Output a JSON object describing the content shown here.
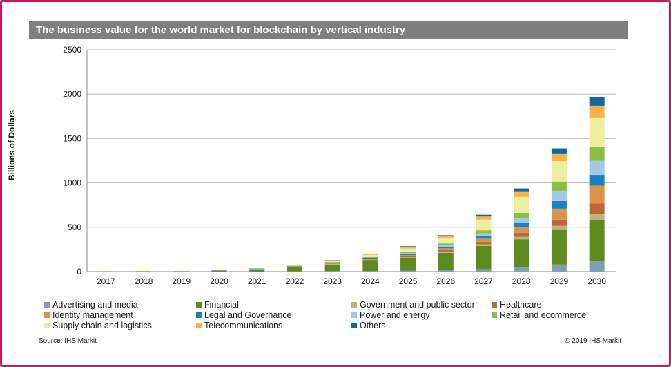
{
  "chart_data": {
    "type": "bar",
    "stacked": true,
    "title": "The business value for the world market for blockchain by vertical industry",
    "ylabel": "Billions of Dollars",
    "xlabel": "",
    "ylim": [
      0,
      2500
    ],
    "yticks": [
      "0",
      "500",
      "1000",
      "1500",
      "2000",
      "2500"
    ],
    "grid": true,
    "legend_position": "bottom",
    "categories": [
      "2017",
      "2018",
      "2019",
      "2020",
      "2021",
      "2022",
      "2023",
      "2024",
      "2025",
      "2026",
      "2027",
      "2028",
      "2029",
      "2030"
    ],
    "series": [
      {
        "name": "Advertising and media",
        "color": "#7f9fb2",
        "values": [
          0,
          0,
          0,
          1,
          2,
          3,
          5,
          8,
          12,
          17,
          28,
          45,
          80,
          120
        ]
      },
      {
        "name": "Financial",
        "color": "#5e8a1e",
        "values": [
          3,
          5,
          7,
          12,
          22,
          50,
          75,
          110,
          140,
          195,
          260,
          320,
          390,
          460
        ]
      },
      {
        "name": "Government and public sector",
        "color": "#b7b981",
        "values": [
          0,
          0,
          0,
          1,
          1,
          2,
          4,
          6,
          9,
          12,
          20,
          28,
          45,
          70
        ]
      },
      {
        "name": "Healthcare",
        "color": "#c0673a",
        "values": [
          0,
          0,
          0,
          1,
          1,
          2,
          5,
          8,
          12,
          18,
          28,
          45,
          70,
          120
        ]
      },
      {
        "name": "Identity management",
        "color": "#d9944a",
        "values": [
          0,
          0,
          0,
          1,
          1,
          2,
          5,
          8,
          12,
          20,
          35,
          60,
          125,
          200
        ]
      },
      {
        "name": "Legal and Governance",
        "color": "#1a82c4",
        "values": [
          0,
          0,
          0,
          1,
          1,
          2,
          5,
          8,
          12,
          18,
          30,
          50,
          85,
          120
        ]
      },
      {
        "name": "Power and energy",
        "color": "#9ecae6",
        "values": [
          0,
          0,
          0,
          1,
          1,
          2,
          5,
          8,
          12,
          18,
          30,
          55,
          110,
          160
        ]
      },
      {
        "name": "Retail and ecommerce",
        "color": "#8cbf3f",
        "values": [
          0,
          0,
          0,
          1,
          1,
          2,
          5,
          8,
          12,
          20,
          35,
          60,
          110,
          160
        ]
      },
      {
        "name": "Supply chain and logistics",
        "color": "#eeeea0",
        "values": [
          0,
          0,
          1,
          1,
          2,
          5,
          12,
          25,
          40,
          60,
          120,
          180,
          230,
          320
        ]
      },
      {
        "name": "Telecommunications",
        "color": "#f7b24a",
        "values": [
          0,
          0,
          0,
          1,
          1,
          2,
          4,
          8,
          15,
          20,
          35,
          55,
          80,
          140
        ]
      },
      {
        "name": "Others",
        "color": "#1366a0",
        "values": [
          0,
          0,
          0,
          1,
          1,
          2,
          3,
          6,
          10,
          12,
          20,
          40,
          65,
          100
        ]
      }
    ]
  },
  "footer": {
    "source": "Source: IHS Markit",
    "copyright": "© 2019 IHS Markit"
  },
  "colors": {
    "frame": "#c8175d",
    "title_bar": "#7f7f7f",
    "grid": "#bfbfbf"
  }
}
